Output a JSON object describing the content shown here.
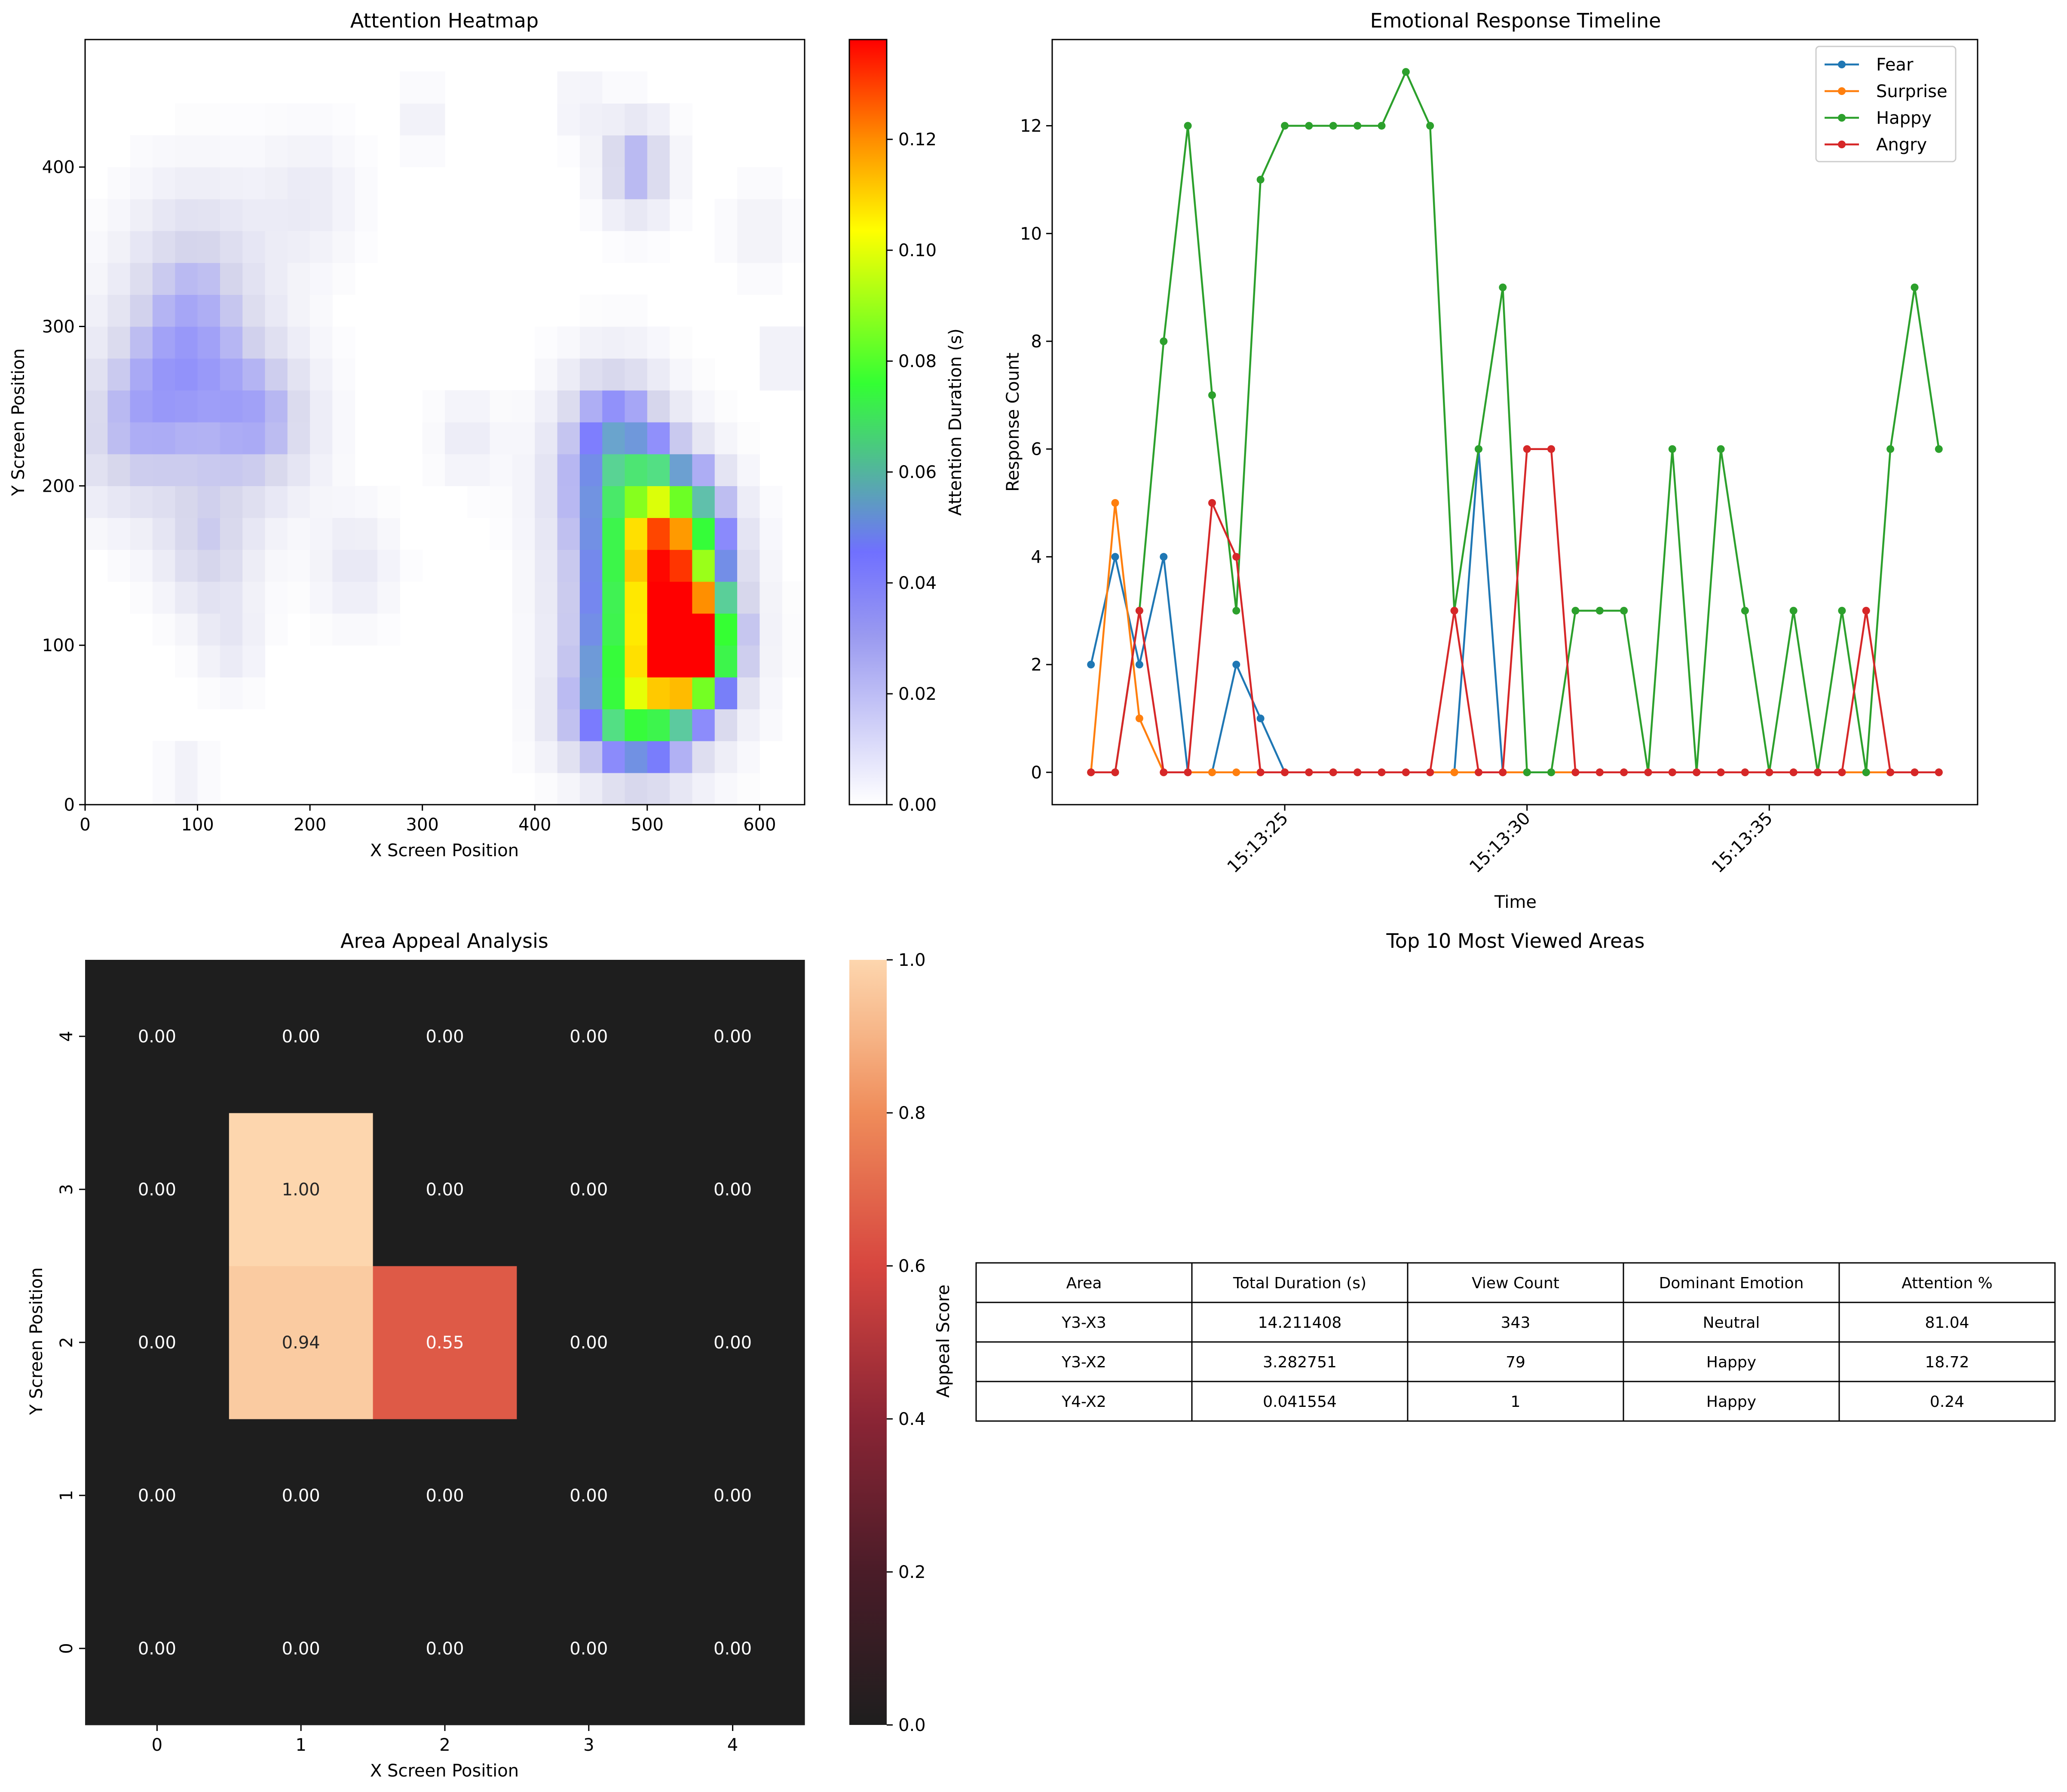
{
  "chart_data": [
    {
      "type": "heatmap",
      "title": "Attention Heatmap",
      "xlabel": "X Screen Position",
      "ylabel": "Y Screen Position",
      "xlim": [
        0,
        640
      ],
      "ylim": [
        0,
        480
      ],
      "xticks": [
        0,
        100,
        200,
        300,
        400,
        500,
        600
      ],
      "yticks": [
        0,
        100,
        200,
        300,
        400
      ],
      "cell_size": 20,
      "colorbar": {
        "label": "Attention Duration (s)",
        "range": [
          0,
          0.138
        ],
        "ticks": [
          "0.00",
          "0.02",
          "0.04",
          "0.06",
          "0.08",
          "0.10",
          "0.12"
        ],
        "tick_values": [
          0,
          0.02,
          0.04,
          0.06,
          0.08,
          0.1,
          0.12
        ]
      },
      "colormap": [
        "#ffffff",
        "#7070ff",
        "#33ff33",
        "#ffff00",
        "#ff8c00",
        "#ff0000"
      ],
      "blobs": [
        {
          "x": 540,
          "y": 100,
          "w": 0.13,
          "s": 22
        },
        {
          "x": 520,
          "y": 165,
          "w": 0.09,
          "s": 32
        },
        {
          "x": 505,
          "y": 105,
          "w": 0.075,
          "s": 46
        },
        {
          "x": 490,
          "y": 60,
          "w": 0.045,
          "s": 30
        },
        {
          "x": 470,
          "y": 200,
          "w": 0.035,
          "s": 40
        },
        {
          "x": 490,
          "y": 400,
          "w": 0.03,
          "s": 22
        },
        {
          "x": 470,
          "y": 240,
          "w": 0.02,
          "s": 30
        },
        {
          "x": 80,
          "y": 260,
          "w": 0.025,
          "s": 45
        },
        {
          "x": 160,
          "y": 240,
          "w": 0.025,
          "s": 35
        },
        {
          "x": 100,
          "y": 330,
          "w": 0.02,
          "s": 45
        },
        {
          "x": 110,
          "y": 160,
          "w": 0.02,
          "s": 30
        },
        {
          "x": 30,
          "y": 230,
          "w": 0.015,
          "s": 35
        },
        {
          "x": 200,
          "y": 380,
          "w": 0.01,
          "s": 30
        },
        {
          "x": 240,
          "y": 150,
          "w": 0.012,
          "s": 25
        },
        {
          "x": 340,
          "y": 230,
          "w": 0.01,
          "s": 20
        },
        {
          "x": 600,
          "y": 360,
          "w": 0.008,
          "s": 20
        },
        {
          "x": 620,
          "y": 280,
          "w": 0.01,
          "s": 15
        },
        {
          "x": 130,
          "y": 100,
          "w": 0.01,
          "s": 20
        },
        {
          "x": 90,
          "y": 20,
          "w": 0.008,
          "s": 15
        },
        {
          "x": 430,
          "y": 50,
          "w": 0.01,
          "s": 20
        },
        {
          "x": 440,
          "y": 440,
          "w": 0.008,
          "s": 15
        },
        {
          "x": 300,
          "y": 430,
          "w": 0.008,
          "s": 15
        }
      ]
    },
    {
      "type": "line",
      "title": "Emotional Response Timeline",
      "xlabel": "Time",
      "ylabel": "Response Count",
      "x_seconds": [
        21,
        21.5,
        22,
        22.5,
        23,
        23.5,
        24,
        24.5,
        25,
        25.5,
        26,
        26.5,
        27,
        27.5,
        28,
        28.5,
        29,
        29.5,
        30,
        30.5,
        31,
        31.5,
        32,
        32.5,
        33,
        33.5,
        34,
        34.5,
        35,
        35.5,
        36,
        36.5,
        37,
        37.5,
        38,
        38.5
      ],
      "xlim": [
        20.2,
        39.3
      ],
      "ylim": [
        -0.6,
        13.6
      ],
      "yticks": [
        0,
        2,
        4,
        6,
        8,
        10,
        12
      ],
      "xticks": [
        {
          "value": 25,
          "label": "15:13:25"
        },
        {
          "value": 30,
          "label": "15:13:30"
        },
        {
          "value": 35,
          "label": "15:13:35"
        }
      ],
      "series": [
        {
          "name": "Fear",
          "color": "#1f77b4",
          "values": [
            2,
            4,
            2,
            4,
            0,
            0,
            2,
            1,
            0,
            0,
            0,
            0,
            0,
            0,
            0,
            0,
            6,
            0,
            0,
            0,
            0,
            0,
            0,
            0,
            0,
            0,
            0,
            0,
            0,
            0,
            0,
            0,
            0,
            0,
            0,
            0
          ]
        },
        {
          "name": "Surprise",
          "color": "#ff7f0e",
          "values": [
            0,
            5,
            1,
            0,
            0,
            0,
            0,
            0,
            0,
            0,
            0,
            0,
            0,
            0,
            0,
            0,
            0,
            0,
            0,
            0,
            0,
            0,
            0,
            0,
            0,
            0,
            0,
            0,
            0,
            0,
            0,
            0,
            0,
            0,
            0,
            0
          ]
        },
        {
          "name": "Happy",
          "color": "#2ca02c",
          "values": [
            0,
            0,
            3,
            8,
            12,
            7,
            3,
            11,
            12,
            12,
            12,
            12,
            12,
            13,
            12,
            3,
            6,
            9,
            0,
            0,
            3,
            3,
            3,
            0,
            6,
            0,
            6,
            3,
            0,
            3,
            0,
            3,
            0,
            6,
            9,
            6
          ]
        },
        {
          "name": "Angry",
          "color": "#d62728",
          "values": [
            0,
            0,
            3,
            0,
            0,
            5,
            4,
            0,
            0,
            0,
            0,
            0,
            0,
            0,
            0,
            3,
            0,
            0,
            6,
            6,
            0,
            0,
            0,
            0,
            0,
            0,
            0,
            0,
            0,
            0,
            0,
            0,
            3,
            0,
            0,
            0
          ]
        }
      ]
    },
    {
      "type": "heatmap",
      "title": "Area Appeal Analysis",
      "xlabel": "X Screen Position",
      "ylabel": "Y Screen Position",
      "xticks": [
        "0",
        "1",
        "2",
        "3",
        "4"
      ],
      "yticks": [
        "0",
        "1",
        "2",
        "3",
        "4"
      ],
      "values": [
        [
          0.0,
          0.0,
          0.0,
          0.0,
          0.0
        ],
        [
          0.0,
          0.0,
          0.0,
          0.0,
          0.0
        ],
        [
          0.0,
          0.94,
          0.55,
          0.0,
          0.0
        ],
        [
          0.0,
          1.0,
          0.0,
          0.0,
          0.0
        ],
        [
          0.0,
          0.0,
          0.0,
          0.0,
          0.0
        ]
      ],
      "colorbar": {
        "label": "Appeal Score",
        "range": [
          0,
          1
        ],
        "ticks": [
          "0.0",
          "0.2",
          "0.4",
          "0.6",
          "0.8",
          "1.0"
        ],
        "tick_values": [
          0,
          0.2,
          0.4,
          0.6,
          0.8,
          1.0
        ]
      },
      "colormap": [
        "#1e1e1e",
        "#5c2030",
        "#a02a3a",
        "#d7463f",
        "#ed8a5a",
        "#f5b88a",
        "#fdd6ae"
      ]
    },
    {
      "type": "table",
      "title": "Top 10 Most Viewed Areas",
      "columns": [
        "Area",
        "Total Duration (s)",
        "View Count",
        "Dominant Emotion",
        "Attention %"
      ],
      "rows": [
        [
          "Y3-X3",
          "14.211408",
          "343",
          "Neutral",
          "81.04"
        ],
        [
          "Y3-X2",
          "3.282751",
          "79",
          "Happy",
          "18.72"
        ],
        [
          "Y4-X2",
          "0.041554",
          "1",
          "Happy",
          "0.24"
        ]
      ]
    }
  ]
}
